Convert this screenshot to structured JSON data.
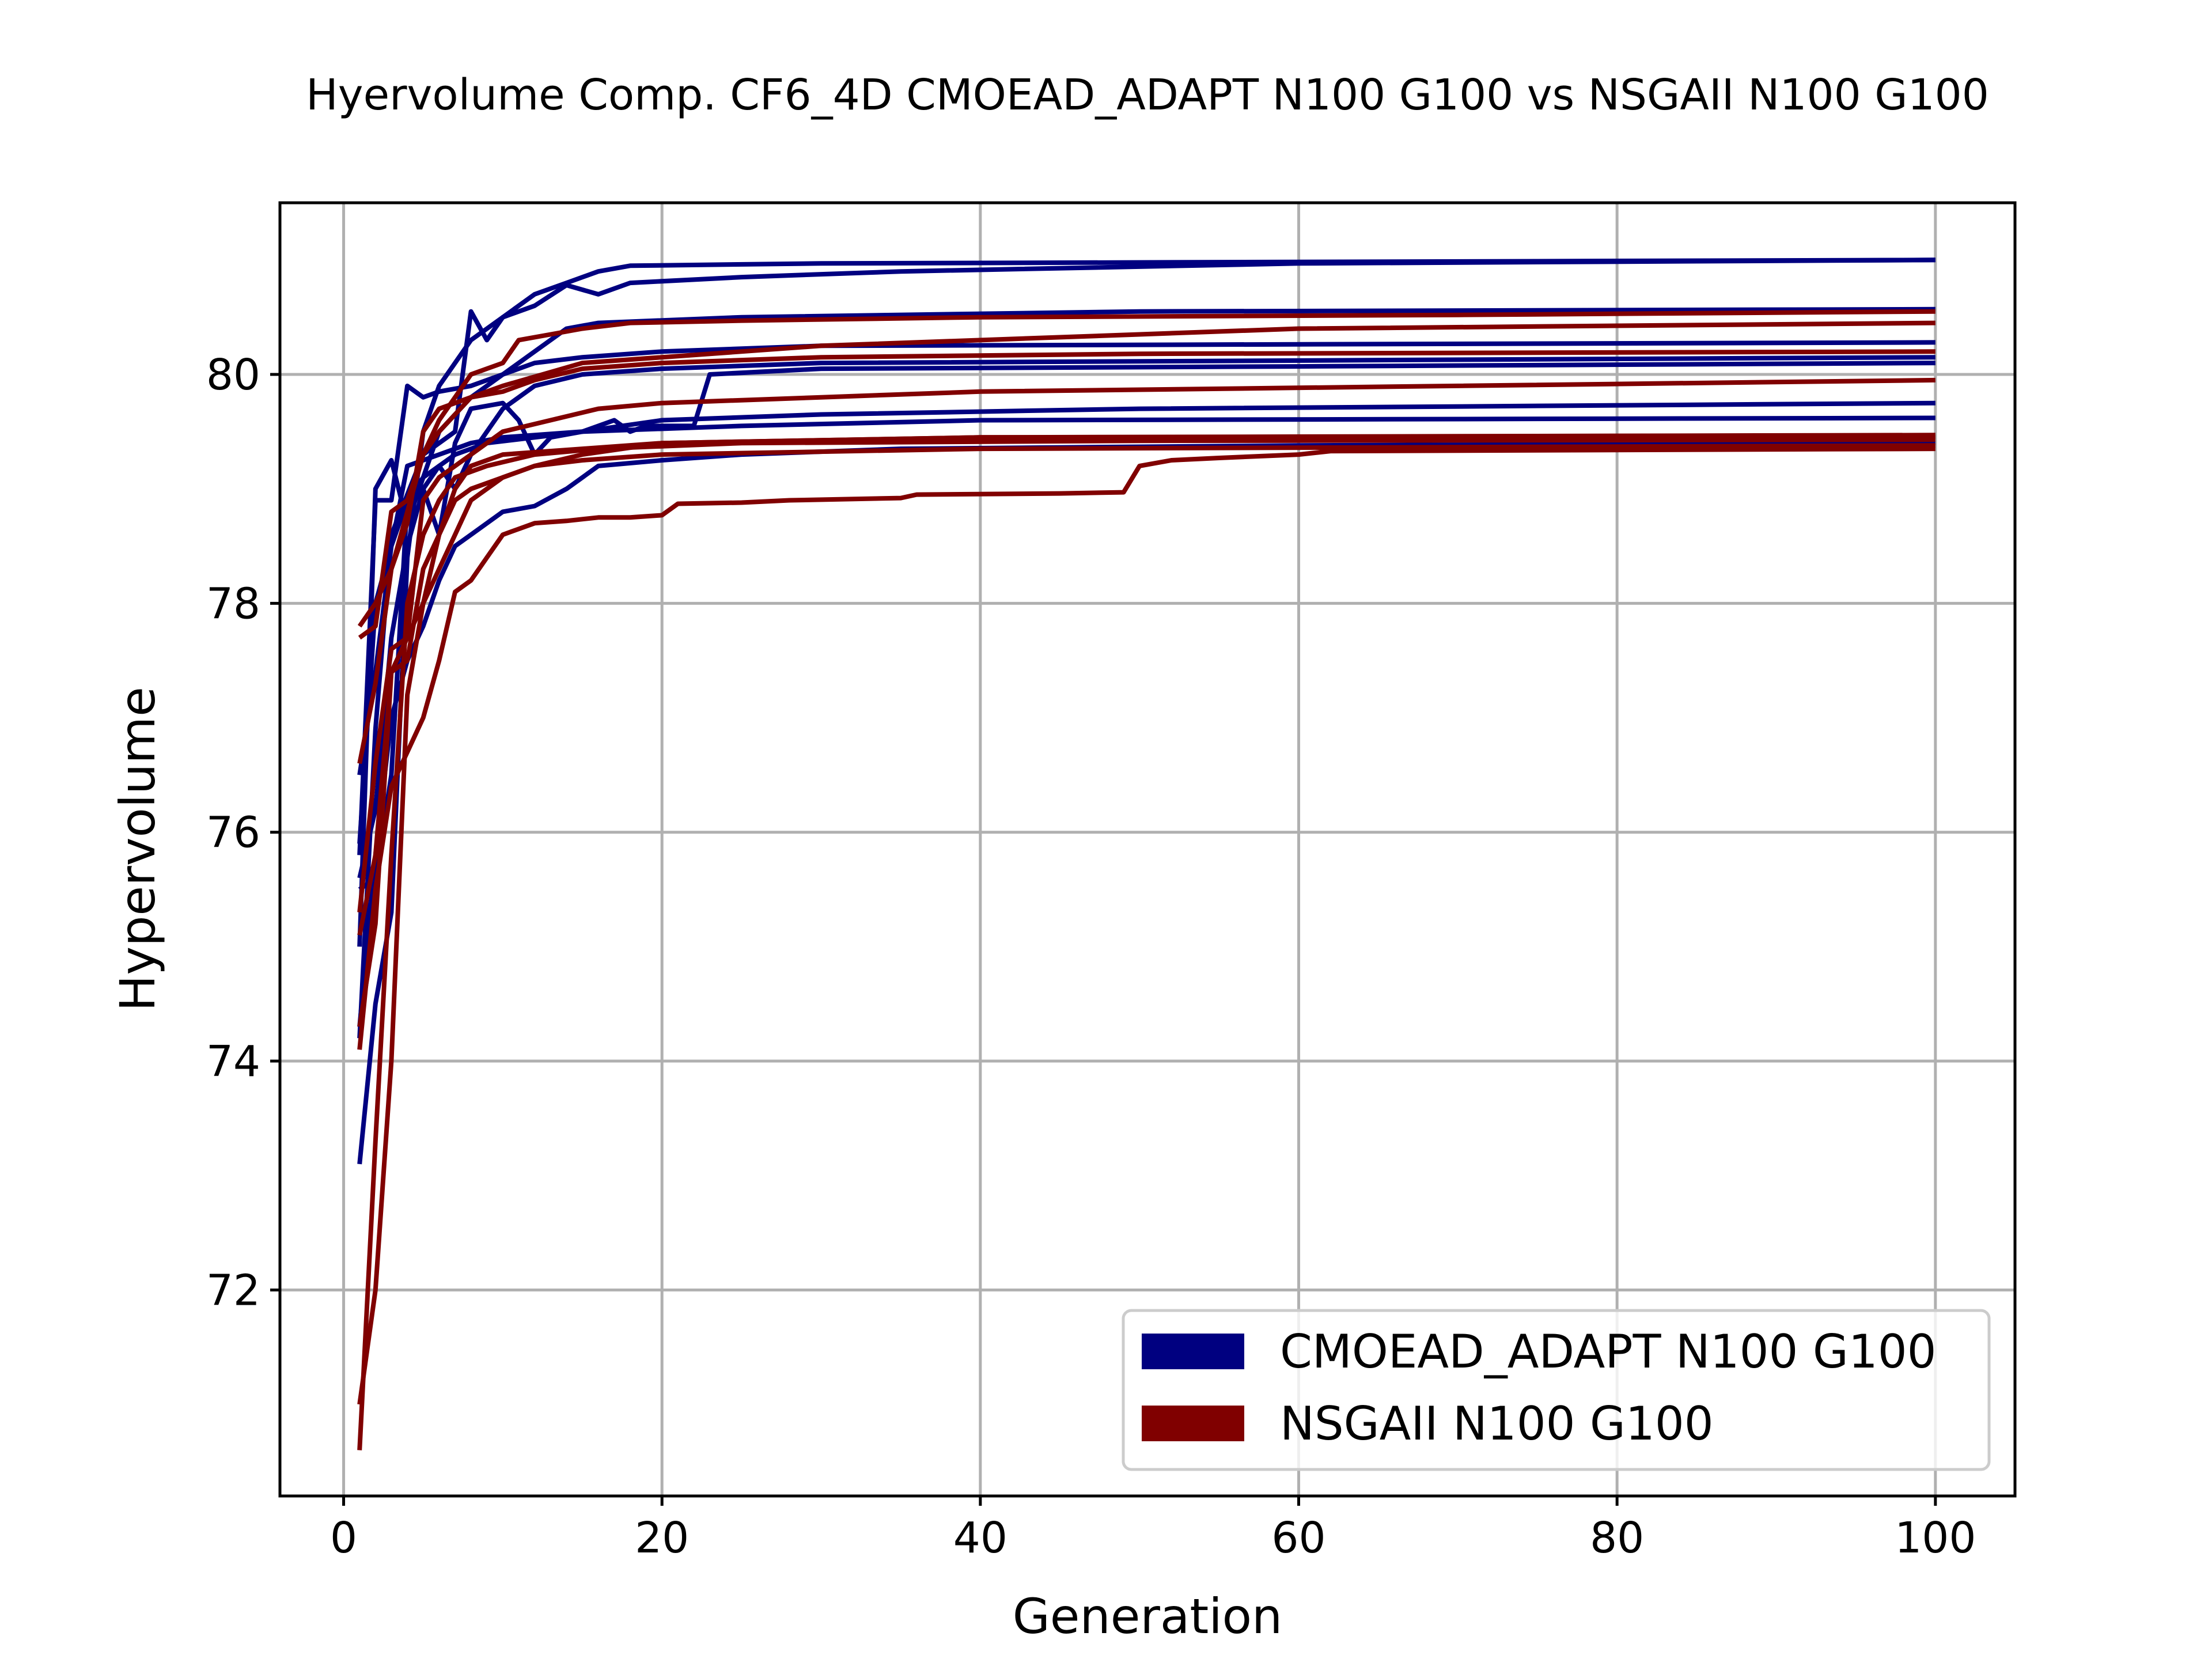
{
  "chart_data": {
    "type": "line",
    "title": "Hyervolume Comp. CF6_4D CMOEAD_ADAPT N100 G100 vs NSGAII N100 G100",
    "xlabel": "Generation",
    "ylabel": "Hypervolume",
    "xlim": [
      -4,
      105
    ],
    "ylim": [
      70.2,
      81.5
    ],
    "xticks": [
      0,
      20,
      40,
      60,
      80,
      100
    ],
    "yticks": [
      72,
      74,
      76,
      78,
      80
    ],
    "grid": true,
    "legend_position": "lower-right",
    "legend": [
      {
        "label": "CMOEAD_ADAPT N100 G100",
        "color": "#000080"
      },
      {
        "label": "NSGAII N100 G100",
        "color": "#800000"
      }
    ],
    "series": [
      {
        "group": "CMOEAD_ADAPT N100 G100",
        "color": "#000080",
        "points": [
          [
            1,
            73.1
          ],
          [
            2,
            74.5
          ],
          [
            3,
            75.3
          ],
          [
            4,
            78.4
          ],
          [
            5,
            79.5
          ],
          [
            6,
            79.9
          ],
          [
            8,
            80.3
          ],
          [
            10,
            80.5
          ],
          [
            12,
            80.7
          ],
          [
            14,
            80.8
          ],
          [
            16,
            80.9
          ],
          [
            18,
            80.95
          ],
          [
            30,
            80.97
          ],
          [
            100,
            81.0
          ]
        ]
      },
      {
        "group": "CMOEAD_ADAPT N100 G100",
        "color": "#000080",
        "points": [
          [
            1,
            74.2
          ],
          [
            2,
            76.9
          ],
          [
            3,
            78.6
          ],
          [
            5,
            79.3
          ],
          [
            7,
            79.5
          ],
          [
            8,
            80.55
          ],
          [
            9,
            80.3
          ],
          [
            10,
            80.5
          ],
          [
            12,
            80.6
          ],
          [
            14,
            80.78
          ],
          [
            16,
            80.7
          ],
          [
            18,
            80.8
          ],
          [
            25,
            80.85
          ],
          [
            35,
            80.9
          ],
          [
            60,
            80.97
          ],
          [
            100,
            81.0
          ]
        ]
      },
      {
        "group": "CMOEAD_ADAPT N100 G100",
        "color": "#000080",
        "points": [
          [
            1,
            75.0
          ],
          [
            2,
            79.0
          ],
          [
            3,
            79.25
          ],
          [
            4,
            78.7
          ],
          [
            6,
            79.5
          ],
          [
            8,
            79.8
          ],
          [
            10,
            80.0
          ],
          [
            12,
            80.2
          ],
          [
            14,
            80.4
          ],
          [
            16,
            80.45
          ],
          [
            25,
            80.5
          ],
          [
            50,
            80.55
          ],
          [
            100,
            80.57
          ]
        ]
      },
      {
        "group": "CMOEAD_ADAPT N100 G100",
        "color": "#000080",
        "points": [
          [
            1,
            75.8
          ],
          [
            2,
            78.9
          ],
          [
            3,
            78.9
          ],
          [
            4,
            79.9
          ],
          [
            5,
            79.8
          ],
          [
            6,
            79.85
          ],
          [
            8,
            79.9
          ],
          [
            10,
            80.0
          ],
          [
            12,
            80.1
          ],
          [
            15,
            80.15
          ],
          [
            20,
            80.2
          ],
          [
            30,
            80.25
          ],
          [
            100,
            80.28
          ]
        ]
      },
      {
        "group": "CMOEAD_ADAPT N100 G100",
        "color": "#000080",
        "points": [
          [
            1,
            75.5
          ],
          [
            2,
            75.6
          ],
          [
            3,
            76.5
          ],
          [
            4,
            78.9
          ],
          [
            5,
            79.0
          ],
          [
            6,
            79.2
          ],
          [
            7,
            79.0
          ],
          [
            8,
            79.3
          ],
          [
            10,
            79.7
          ],
          [
            12,
            79.9
          ],
          [
            15,
            80.0
          ],
          [
            20,
            80.05
          ],
          [
            30,
            80.1
          ],
          [
            100,
            80.15
          ]
        ]
      },
      {
        "group": "CMOEAD_ADAPT N100 G100",
        "color": "#000080",
        "points": [
          [
            1,
            75.6
          ],
          [
            2,
            76.2
          ],
          [
            3,
            77.7
          ],
          [
            4,
            78.5
          ],
          [
            5,
            79.0
          ],
          [
            6,
            78.6
          ],
          [
            7,
            79.4
          ],
          [
            8,
            79.7
          ],
          [
            10,
            79.75
          ],
          [
            11,
            79.6
          ],
          [
            12,
            79.3
          ],
          [
            13,
            79.45
          ],
          [
            15,
            79.5
          ],
          [
            17,
            79.6
          ],
          [
            18,
            79.5
          ],
          [
            19,
            79.55
          ],
          [
            22,
            79.55
          ],
          [
            23,
            80.0
          ],
          [
            30,
            80.05
          ],
          [
            60,
            80.07
          ],
          [
            100,
            80.1
          ]
        ]
      },
      {
        "group": "CMOEAD_ADAPT N100 G100",
        "color": "#000080",
        "points": [
          [
            1,
            75.9
          ],
          [
            2,
            78.0
          ],
          [
            3,
            78.5
          ],
          [
            4,
            78.9
          ],
          [
            5,
            79.1
          ],
          [
            7,
            79.3
          ],
          [
            9,
            79.4
          ],
          [
            12,
            79.45
          ],
          [
            15,
            79.5
          ],
          [
            20,
            79.6
          ],
          [
            30,
            79.65
          ],
          [
            50,
            79.7
          ],
          [
            100,
            79.75
          ]
        ]
      },
      {
        "group": "CMOEAD_ADAPT N100 G100",
        "color": "#000080",
        "points": [
          [
            1,
            76.5
          ],
          [
            2,
            77.4
          ],
          [
            3,
            78.5
          ],
          [
            4,
            79.2
          ],
          [
            6,
            79.3
          ],
          [
            8,
            79.4
          ],
          [
            10,
            79.45
          ],
          [
            15,
            79.5
          ],
          [
            25,
            79.55
          ],
          [
            40,
            79.6
          ],
          [
            100,
            79.62
          ]
        ]
      },
      {
        "group": "CMOEAD_ADAPT N100 G100",
        "color": "#000080",
        "points": [
          [
            1,
            74.3
          ],
          [
            2,
            75.8
          ],
          [
            3,
            77.0
          ],
          [
            4,
            77.5
          ],
          [
            5,
            77.8
          ],
          [
            6,
            78.2
          ],
          [
            7,
            78.5
          ],
          [
            8,
            78.6
          ],
          [
            10,
            78.8
          ],
          [
            12,
            78.85
          ],
          [
            14,
            79.0
          ],
          [
            16,
            79.2
          ],
          [
            20,
            79.25
          ],
          [
            25,
            79.3
          ],
          [
            35,
            79.35
          ],
          [
            60,
            79.38
          ],
          [
            100,
            79.4
          ]
        ]
      },
      {
        "group": "NSGAII N100 G100",
        "color": "#800000",
        "points": [
          [
            1,
            77.8
          ],
          [
            2,
            78.0
          ],
          [
            3,
            78.3
          ],
          [
            4,
            78.8
          ],
          [
            5,
            79.3
          ],
          [
            6,
            79.6
          ],
          [
            8,
            80.0
          ],
          [
            10,
            80.1
          ],
          [
            11,
            80.3
          ],
          [
            13,
            80.35
          ],
          [
            15,
            80.4
          ],
          [
            18,
            80.45
          ],
          [
            25,
            80.47
          ],
          [
            40,
            80.5
          ],
          [
            70,
            80.52
          ],
          [
            100,
            80.55
          ]
        ]
      },
      {
        "group": "NSGAII N100 G100",
        "color": "#800000",
        "points": [
          [
            1,
            77.7
          ],
          [
            2,
            77.8
          ],
          [
            3,
            78.8
          ],
          [
            4,
            78.9
          ],
          [
            5,
            79.3
          ],
          [
            6,
            79.5
          ],
          [
            8,
            79.8
          ],
          [
            10,
            79.9
          ],
          [
            15,
            80.1
          ],
          [
            20,
            80.15
          ],
          [
            30,
            80.25
          ],
          [
            50,
            80.35
          ],
          [
            60,
            80.4
          ],
          [
            100,
            80.45
          ]
        ]
      },
      {
        "group": "NSGAII N100 G100",
        "color": "#800000",
        "points": [
          [
            1,
            76.6
          ],
          [
            2,
            77.3
          ],
          [
            3,
            78.3
          ],
          [
            4,
            78.7
          ],
          [
            5,
            79.5
          ],
          [
            6,
            79.7
          ],
          [
            8,
            79.8
          ],
          [
            10,
            79.85
          ],
          [
            12,
            79.95
          ],
          [
            15,
            80.05
          ],
          [
            20,
            80.1
          ],
          [
            30,
            80.15
          ],
          [
            50,
            80.18
          ],
          [
            100,
            80.2
          ]
        ]
      },
      {
        "group": "NSGAII N100 G100",
        "color": "#800000",
        "points": [
          [
            1,
            75.3
          ],
          [
            2,
            76.6
          ],
          [
            3,
            77.6
          ],
          [
            4,
            77.7
          ],
          [
            5,
            78.9
          ],
          [
            6,
            79.1
          ],
          [
            8,
            79.3
          ],
          [
            10,
            79.5
          ],
          [
            13,
            79.6
          ],
          [
            16,
            79.7
          ],
          [
            20,
            79.75
          ],
          [
            30,
            79.8
          ],
          [
            40,
            79.85
          ],
          [
            70,
            79.9
          ],
          [
            100,
            79.95
          ]
        ]
      },
      {
        "group": "NSGAII N100 G100",
        "color": "#800000",
        "points": [
          [
            1,
            75.1
          ],
          [
            2,
            75.8
          ],
          [
            3,
            77.4
          ],
          [
            4,
            77.5
          ],
          [
            5,
            78.3
          ],
          [
            6,
            78.6
          ],
          [
            7,
            79.0
          ],
          [
            8,
            79.2
          ],
          [
            10,
            79.3
          ],
          [
            15,
            79.35
          ],
          [
            20,
            79.4
          ],
          [
            40,
            79.45
          ],
          [
            100,
            79.45
          ]
        ]
      },
      {
        "group": "NSGAII N100 G100",
        "color": "#800000",
        "points": [
          [
            1,
            74.3
          ],
          [
            2,
            75.2
          ],
          [
            3,
            77.4
          ],
          [
            4,
            77.7
          ],
          [
            5,
            78.0
          ],
          [
            6,
            78.3
          ],
          [
            7,
            78.6
          ],
          [
            8,
            78.9
          ],
          [
            10,
            79.1
          ],
          [
            12,
            79.2
          ],
          [
            15,
            79.25
          ],
          [
            20,
            79.3
          ],
          [
            40,
            79.35
          ],
          [
            100,
            79.38
          ]
        ]
      },
      {
        "group": "NSGAII N100 G100",
        "color": "#800000",
        "points": [
          [
            1,
            74.1
          ],
          [
            2,
            75.5
          ],
          [
            3,
            76.4
          ],
          [
            4,
            76.7
          ],
          [
            5,
            77.0
          ],
          [
            6,
            77.5
          ],
          [
            7,
            78.1
          ],
          [
            8,
            78.2
          ],
          [
            9,
            78.4
          ],
          [
            10,
            78.6
          ],
          [
            11,
            78.65
          ],
          [
            12,
            78.7
          ],
          [
            14,
            78.72
          ],
          [
            16,
            78.75
          ],
          [
            18,
            78.75
          ],
          [
            20,
            78.77
          ],
          [
            21,
            78.87
          ],
          [
            25,
            78.88
          ],
          [
            28,
            78.9
          ],
          [
            35,
            78.92
          ],
          [
            36,
            78.95
          ],
          [
            45,
            78.96
          ],
          [
            49,
            78.97
          ],
          [
            50,
            79.2
          ],
          [
            52,
            79.25
          ],
          [
            55,
            79.27
          ],
          [
            60,
            79.3
          ],
          [
            62,
            79.33
          ],
          [
            100,
            79.35
          ]
        ]
      },
      {
        "group": "NSGAII N100 G100",
        "color": "#800000",
        "points": [
          [
            1,
            71.0
          ],
          [
            2,
            72.0
          ],
          [
            3,
            74.0
          ],
          [
            4,
            77.2
          ],
          [
            5,
            78.0
          ],
          [
            6,
            78.6
          ],
          [
            7,
            78.9
          ],
          [
            8,
            79.0
          ],
          [
            10,
            79.1
          ],
          [
            12,
            79.2
          ],
          [
            15,
            79.3
          ],
          [
            20,
            79.4
          ],
          [
            40,
            79.45
          ],
          [
            100,
            79.47
          ]
        ]
      },
      {
        "group": "NSGAII N100 G100",
        "color": "#800000",
        "points": [
          [
            1,
            70.6
          ],
          [
            2,
            73.3
          ],
          [
            3,
            75.8
          ],
          [
            4,
            78.0
          ],
          [
            5,
            78.6
          ],
          [
            6,
            78.9
          ],
          [
            7,
            79.1
          ],
          [
            9,
            79.2
          ],
          [
            12,
            79.3
          ],
          [
            16,
            79.35
          ],
          [
            25,
            79.4
          ],
          [
            50,
            79.42
          ],
          [
            100,
            79.43
          ]
        ]
      }
    ]
  }
}
